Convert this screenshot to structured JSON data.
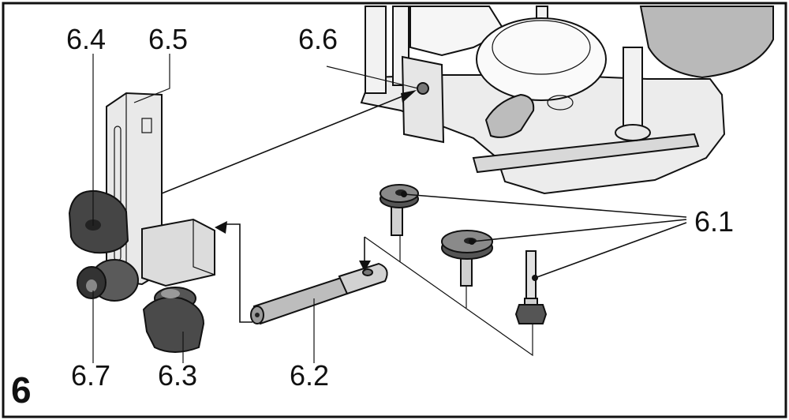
{
  "figure": {
    "number": "6",
    "labels": {
      "l61": "6.1",
      "l62": "6.2",
      "l63": "6.3",
      "l64": "6.4",
      "l65": "6.5",
      "l66": "6.6",
      "l67": "6.7"
    }
  },
  "colors": {
    "frame": "#111111",
    "light_part": "#e0e0e0",
    "mid_part": "#b8b8b8",
    "dark_part": "#4a4a4a"
  }
}
